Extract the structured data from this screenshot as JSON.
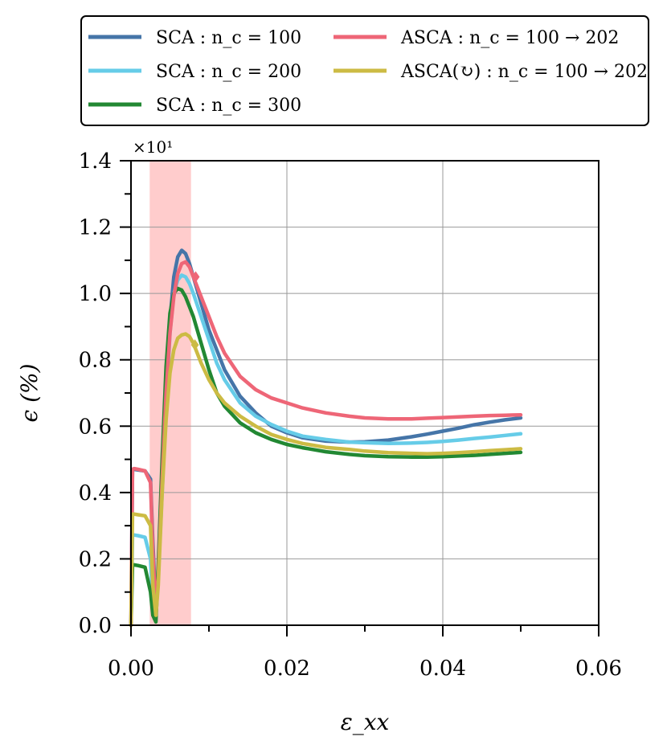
{
  "chart_data": {
    "type": "line",
    "title": "",
    "xlabel": "ε_xx",
    "ylabel": "ϵ (%)",
    "y_multiplier": "×10¹",
    "xlim": [
      0.0,
      0.06
    ],
    "ylim": [
      0.0,
      1.4
    ],
    "x_ticks": [
      0.0,
      0.02,
      0.04,
      0.06
    ],
    "x_tick_labels": [
      "0.00",
      "0.02",
      "0.04",
      "0.06"
    ],
    "y_ticks": [
      0.0,
      0.2,
      0.4,
      0.6,
      0.8,
      1.0,
      1.2,
      1.4
    ],
    "y_tick_labels": [
      "0.0",
      "0.2",
      "0.4",
      "0.6",
      "0.8",
      "1.0",
      "1.2",
      "1.4"
    ],
    "grid": true,
    "shaded_region": {
      "x": [
        0.0024,
        0.0077
      ],
      "color": "#ffcccc"
    },
    "legend": {
      "placement": "top, above plot",
      "entries": [
        {
          "series": 0,
          "label": "SCA : n_c = 100"
        },
        {
          "series": 3,
          "label": "ASCA : n_c = 100 → 202"
        },
        {
          "series": 1,
          "label": "SCA : n_c = 200"
        },
        {
          "series": 4,
          "label": "ASCA(↻) : n_c = 100 → 202"
        },
        {
          "series": 2,
          "label": "SCA : n_c = 300"
        }
      ]
    },
    "series": [
      {
        "name": "SCA : n_c = 100",
        "color": "#4575a8",
        "x": [
          0.0,
          0.0002,
          0.0004,
          0.0009,
          0.0018,
          0.0025,
          0.0028,
          0.0032,
          0.0035,
          0.004,
          0.0045,
          0.005,
          0.0055,
          0.006,
          0.0065,
          0.007,
          0.0075,
          0.008,
          0.009,
          0.01,
          0.011,
          0.012,
          0.014,
          0.016,
          0.018,
          0.02,
          0.022,
          0.025,
          0.028,
          0.03,
          0.033,
          0.036,
          0.038,
          0.04,
          0.042,
          0.044,
          0.046,
          0.048,
          0.05
        ],
        "y": [
          0.0,
          0.47,
          0.47,
          0.468,
          0.465,
          0.44,
          0.25,
          0.05,
          0.15,
          0.45,
          0.72,
          0.92,
          1.05,
          1.11,
          1.13,
          1.12,
          1.09,
          1.05,
          0.97,
          0.89,
          0.83,
          0.77,
          0.69,
          0.64,
          0.6,
          0.58,
          0.565,
          0.555,
          0.552,
          0.553,
          0.558,
          0.568,
          0.576,
          0.585,
          0.594,
          0.604,
          0.612,
          0.619,
          0.625
        ]
      },
      {
        "name": "SCA : n_c = 200",
        "color": "#66cce8",
        "x": [
          0.0,
          0.0002,
          0.0004,
          0.0009,
          0.0018,
          0.0025,
          0.0028,
          0.0032,
          0.0035,
          0.004,
          0.0045,
          0.005,
          0.0055,
          0.006,
          0.0065,
          0.007,
          0.0075,
          0.008,
          0.009,
          0.01,
          0.011,
          0.012,
          0.014,
          0.016,
          0.018,
          0.02,
          0.022,
          0.025,
          0.028,
          0.03,
          0.033,
          0.036,
          0.038,
          0.04,
          0.042,
          0.044,
          0.046,
          0.048,
          0.05
        ],
        "y": [
          0.0,
          0.27,
          0.272,
          0.27,
          0.265,
          0.2,
          0.05,
          0.02,
          0.15,
          0.4,
          0.66,
          0.88,
          1.0,
          1.04,
          1.055,
          1.05,
          1.03,
          1.0,
          0.93,
          0.86,
          0.79,
          0.74,
          0.67,
          0.63,
          0.605,
          0.585,
          0.57,
          0.56,
          0.552,
          0.55,
          0.548,
          0.549,
          0.551,
          0.554,
          0.558,
          0.563,
          0.567,
          0.572,
          0.577
        ]
      },
      {
        "name": "SCA : n_c = 300",
        "color": "#228833",
        "x": [
          0.0,
          0.0002,
          0.0004,
          0.0009,
          0.0018,
          0.0025,
          0.0028,
          0.0032,
          0.0035,
          0.004,
          0.0045,
          0.005,
          0.0055,
          0.006,
          0.0065,
          0.007,
          0.0075,
          0.008,
          0.009,
          0.01,
          0.011,
          0.012,
          0.014,
          0.016,
          0.018,
          0.02,
          0.022,
          0.025,
          0.028,
          0.03,
          0.033,
          0.036,
          0.038,
          0.04,
          0.042,
          0.044,
          0.046,
          0.048,
          0.05
        ],
        "y": [
          0.0,
          0.18,
          0.182,
          0.18,
          0.175,
          0.1,
          0.03,
          0.01,
          0.18,
          0.5,
          0.78,
          0.94,
          1.0,
          1.015,
          1.01,
          0.99,
          0.96,
          0.93,
          0.85,
          0.77,
          0.7,
          0.66,
          0.61,
          0.58,
          0.56,
          0.545,
          0.535,
          0.523,
          0.515,
          0.511,
          0.508,
          0.507,
          0.507,
          0.508,
          0.51,
          0.512,
          0.515,
          0.518,
          0.521
        ]
      },
      {
        "name": "ASCA : n_c = 100 → 202",
        "color": "#ee6677",
        "x": [
          0.0,
          0.0002,
          0.0004,
          0.0009,
          0.0018,
          0.0025,
          0.0028,
          0.0032,
          0.0035,
          0.004,
          0.0045,
          0.005,
          0.0055,
          0.006,
          0.0065,
          0.007,
          0.0075,
          0.008,
          0.009,
          0.01,
          0.011,
          0.012,
          0.014,
          0.016,
          0.018,
          0.02,
          0.022,
          0.025,
          0.028,
          0.03,
          0.033,
          0.036,
          0.038,
          0.04,
          0.042,
          0.044,
          0.046,
          0.048,
          0.05
        ],
        "y": [
          0.0,
          0.47,
          0.472,
          0.47,
          0.465,
          0.43,
          0.22,
          0.05,
          0.14,
          0.44,
          0.7,
          0.88,
          0.99,
          1.06,
          1.09,
          1.095,
          1.08,
          1.05,
          0.99,
          0.93,
          0.87,
          0.82,
          0.75,
          0.71,
          0.685,
          0.67,
          0.655,
          0.64,
          0.63,
          0.625,
          0.622,
          0.622,
          0.624,
          0.626,
          0.628,
          0.63,
          0.632,
          0.633,
          0.634
        ]
      },
      {
        "name": "ASCA(↻) : n_c = 100 → 202",
        "color": "#ccbb44",
        "x": [
          0.0,
          0.0002,
          0.0004,
          0.0009,
          0.0018,
          0.0025,
          0.0028,
          0.0032,
          0.0035,
          0.004,
          0.0045,
          0.005,
          0.0055,
          0.006,
          0.0065,
          0.007,
          0.0075,
          0.008,
          0.009,
          0.01,
          0.011,
          0.012,
          0.014,
          0.016,
          0.018,
          0.02,
          0.022,
          0.025,
          0.028,
          0.03,
          0.033,
          0.036,
          0.038,
          0.04,
          0.042,
          0.044,
          0.046,
          0.048,
          0.05
        ],
        "y": [
          0.0,
          0.335,
          0.335,
          0.333,
          0.33,
          0.3,
          0.12,
          0.03,
          0.12,
          0.4,
          0.62,
          0.76,
          0.83,
          0.865,
          0.875,
          0.878,
          0.87,
          0.85,
          0.79,
          0.74,
          0.7,
          0.67,
          0.63,
          0.6,
          0.575,
          0.56,
          0.548,
          0.536,
          0.53,
          0.525,
          0.52,
          0.518,
          0.517,
          0.518,
          0.52,
          0.523,
          0.526,
          0.529,
          0.532
        ]
      }
    ],
    "markers": [
      {
        "series": 3,
        "x": 0.0083,
        "y": 1.05,
        "shape": "diamond"
      },
      {
        "series": 4,
        "x": 0.0082,
        "y": 0.845,
        "shape": "diamond"
      }
    ]
  }
}
